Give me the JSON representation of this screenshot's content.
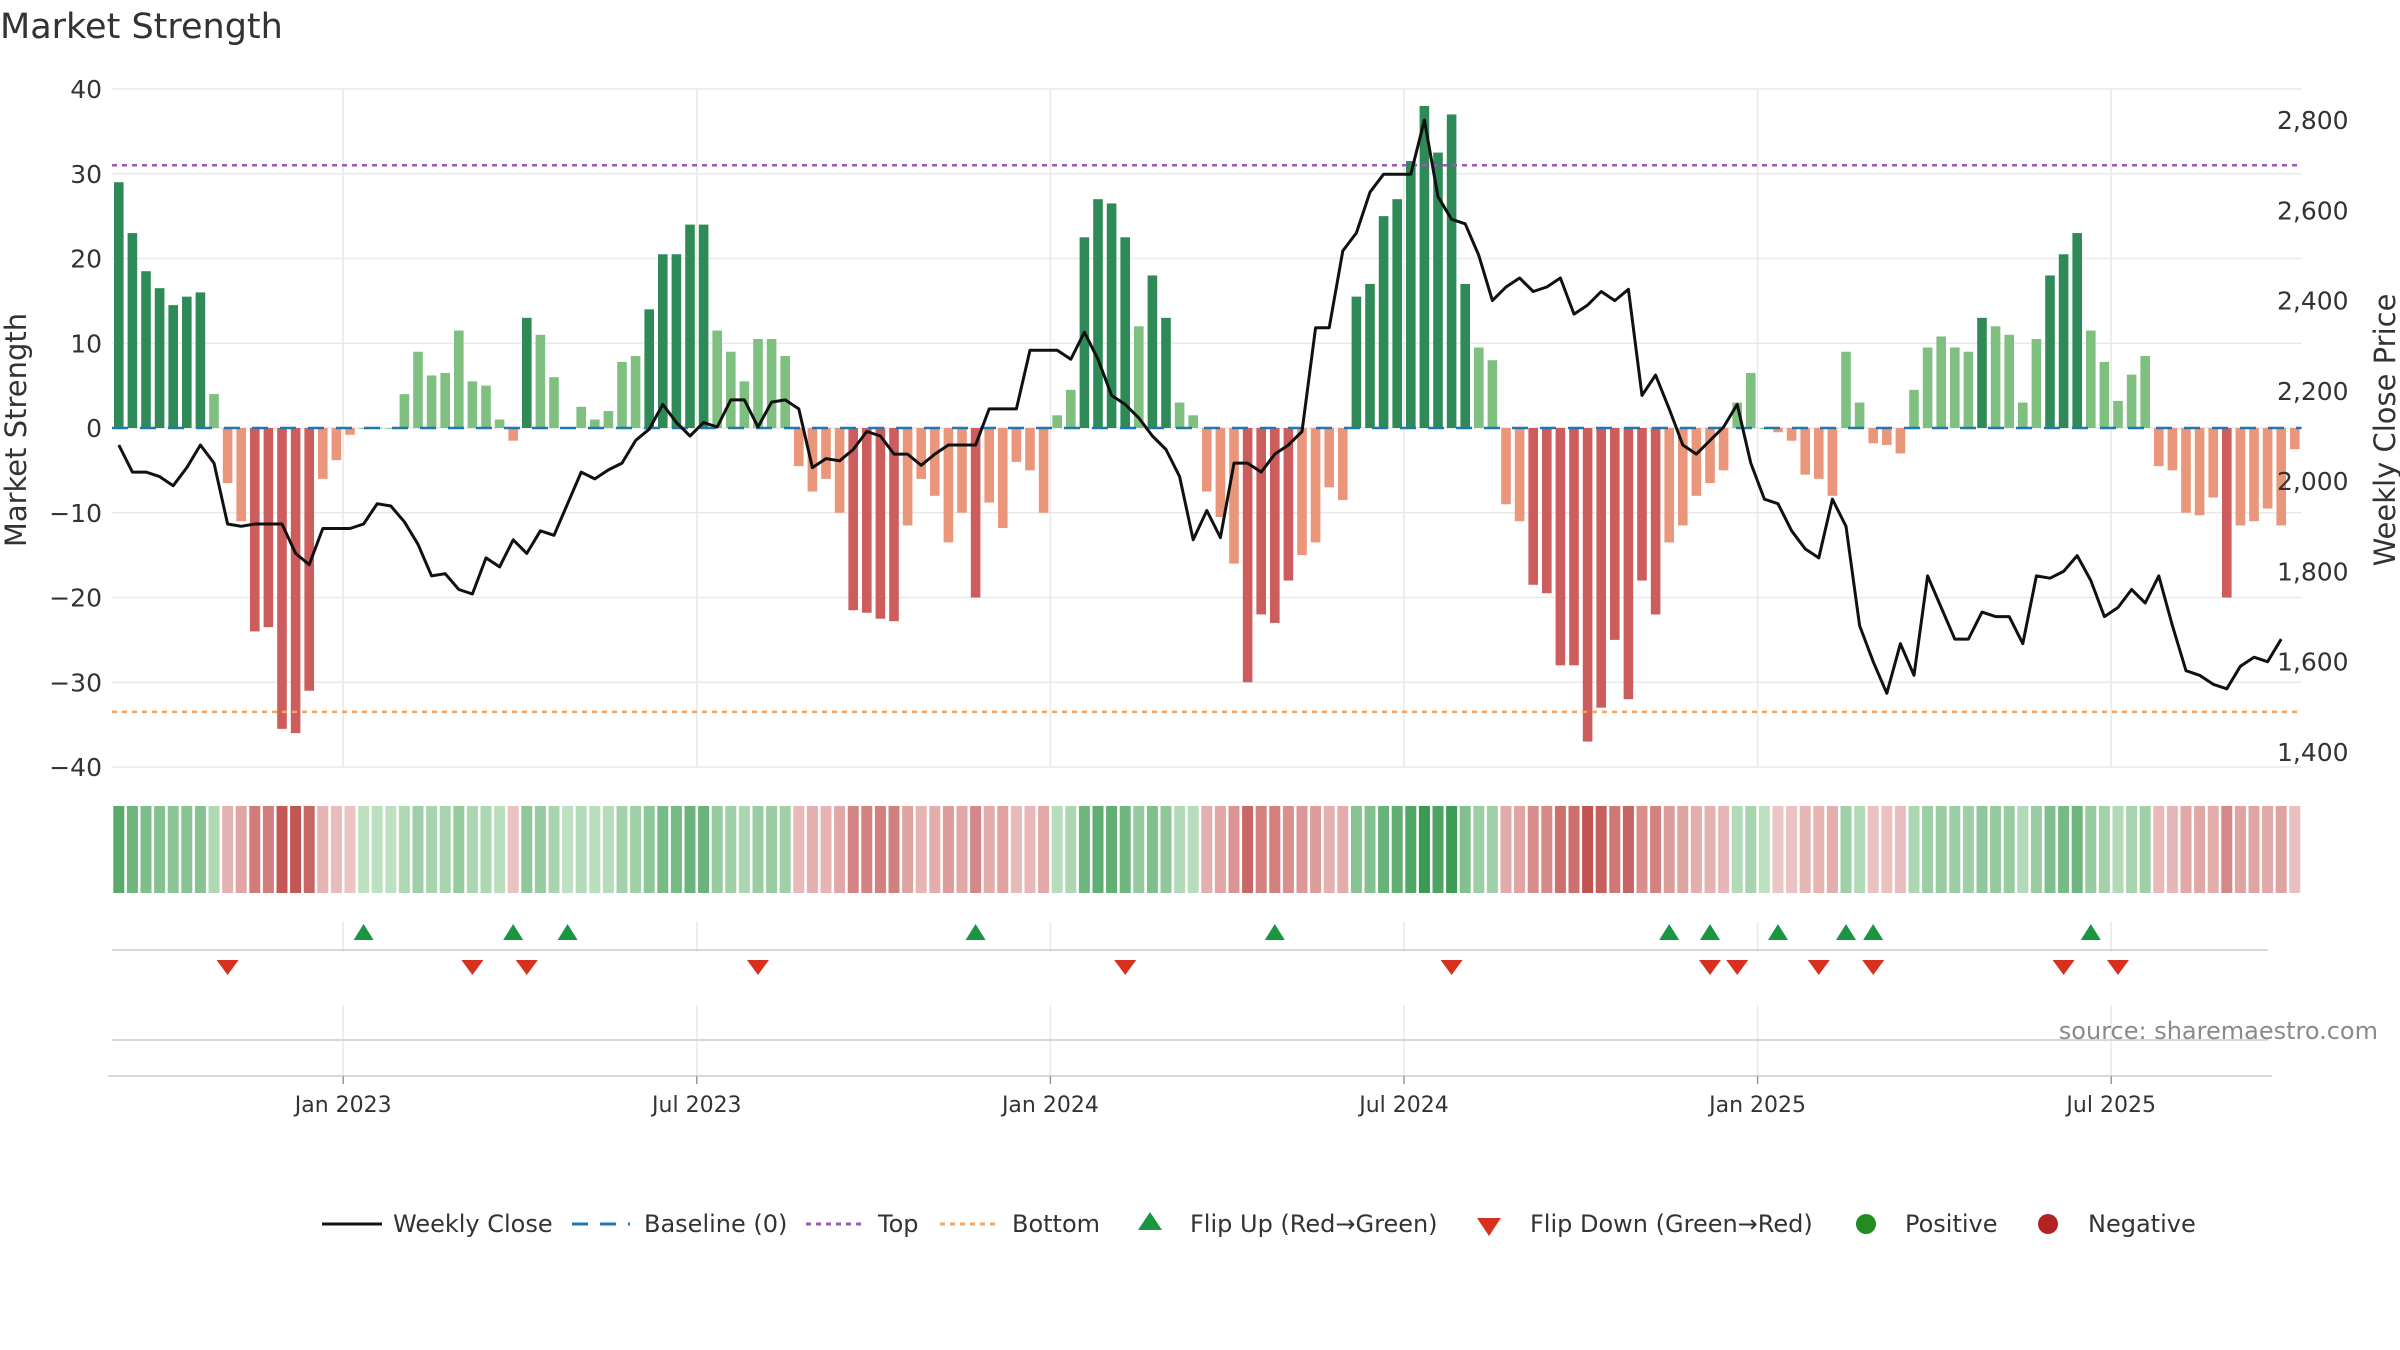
{
  "chart_data": {
    "type": "bar",
    "title": "Market Strength",
    "ylabel": "Market Strength",
    "y2label": "Weekly Close Price",
    "ylim": [
      -40,
      40
    ],
    "y2lim": [
      1350,
      2850
    ],
    "yticks": [
      "40",
      "30",
      "20",
      "10",
      "0",
      "−10",
      "−20",
      "−30",
      "−40"
    ],
    "y2ticks": [
      "2,800",
      "2,600",
      "2,400",
      "2,200",
      "2,000",
      "1,800",
      "1,600",
      "1,400"
    ],
    "top_level": 31,
    "bottom_level": -33.5,
    "source": "source: sharemaestro.com",
    "x_ticks": [
      "Jan 2023",
      "Jul 2023",
      "Jan 2024",
      "Jul 2024",
      "Jan 2025",
      "Jul 2025"
    ],
    "x_tick_weeks": [
      17,
      43,
      69,
      95,
      121,
      147
    ],
    "bars": [
      29,
      23,
      18.5,
      16.5,
      14.5,
      15.5,
      16,
      4,
      -6.5,
      -11,
      -24,
      -23.5,
      -35.5,
      -36,
      -31,
      -6,
      -3.8,
      -0.8,
      0,
      0,
      0,
      4,
      9,
      6.2,
      6.5,
      11.5,
      5.5,
      5,
      1,
      -1.5,
      13,
      11,
      6,
      0,
      2.5,
      1,
      2,
      7.8,
      8.5,
      14,
      20.5,
      20.5,
      24,
      24,
      11.5,
      9,
      5.5,
      10.5,
      10.5,
      8.5,
      -4.5,
      -7.5,
      -6,
      -10,
      -21.5,
      -21.8,
      -22.5,
      -22.8,
      -11.5,
      -6,
      -8,
      -13.5,
      -10,
      -20,
      -8.8,
      -11.8,
      -4,
      -5,
      -10,
      1.5,
      4.5,
      22.5,
      27,
      26.5,
      22.5,
      12,
      18,
      13,
      3,
      1.5,
      -7.5,
      -10.5,
      -16,
      -30,
      -22,
      -23,
      -18,
      -15,
      -13.5,
      -7,
      -8.5,
      15.5,
      17,
      25,
      27,
      31.5,
      38,
      32.5,
      37,
      17,
      9.5,
      8,
      -9,
      -11,
      -18.5,
      -19.5,
      -28,
      -28,
      -37,
      -33,
      -25,
      -32,
      -18,
      -22,
      -13.5,
      -11.5,
      -8,
      -6.5,
      -5,
      3,
      6.5,
      0,
      -0.5,
      -1.5,
      -5.5,
      -6,
      -8,
      9,
      3,
      -1.8,
      -2,
      -3,
      4.5,
      9.5,
      10.8,
      9.5,
      9,
      13,
      12,
      11,
      3,
      10.5,
      18,
      20.5,
      23,
      11.5,
      7.8,
      3.2,
      6.3,
      8.5,
      -4.5,
      -5,
      -10,
      -10.3,
      -8.2,
      -20,
      -11.5,
      -11,
      -9.5,
      -11.5,
      -2.5
    ],
    "close": [
      2080,
      2020,
      2020,
      2010,
      1990,
      2030,
      2080,
      2040,
      1905,
      1900,
      1905,
      1905,
      1905,
      1840,
      1815,
      1895,
      1895,
      1895,
      1905,
      1950,
      1945,
      1910,
      1860,
      1790,
      1795,
      1760,
      1750,
      1830,
      1810,
      1870,
      1840,
      1890,
      1880,
      1950,
      2020,
      2005,
      2025,
      2040,
      2090,
      2115,
      2170,
      2130,
      2100,
      2130,
      2120,
      2180,
      2180,
      2120,
      2175,
      2180,
      2160,
      2030,
      2050,
      2045,
      2070,
      2110,
      2100,
      2060,
      2060,
      2035,
      2060,
      2080,
      2080,
      2080,
      2160,
      2160,
      2160,
      2290,
      2290,
      2290,
      2270,
      2330,
      2270,
      2190,
      2170,
      2140,
      2100,
      2070,
      2010,
      1870,
      1935,
      1875,
      2040,
      2040,
      2020,
      2060,
      2080,
      2110,
      2340,
      2340,
      2510,
      2550,
      2640,
      2680,
      2680,
      2680,
      2800,
      2630,
      2580,
      2570,
      2500,
      2400,
      2430,
      2450,
      2420,
      2430,
      2450,
      2370,
      2390,
      2420,
      2400,
      2425,
      2190,
      2235,
      2160,
      2080,
      2060,
      2090,
      2120,
      2170,
      2040,
      1960,
      1950,
      1890,
      1850,
      1830,
      1960,
      1900,
      1680,
      1600,
      1530,
      1640,
      1570,
      1790,
      1720,
      1650,
      1650,
      1710,
      1700,
      1700,
      1640,
      1790,
      1785,
      1800,
      1835,
      1780,
      1700,
      1720,
      1760,
      1730,
      1790,
      1680,
      1580,
      1570,
      1550,
      1540,
      1590,
      1610,
      1600,
      1650
    ],
    "flip_up_weeks": [
      18,
      29,
      33,
      63,
      85,
      114,
      117,
      122,
      127,
      129,
      145
    ],
    "flip_down_weeks": [
      8,
      26,
      30,
      47,
      74,
      98,
      117,
      119,
      125,
      129,
      143,
      147
    ],
    "legend": [
      "Weekly Close",
      "Baseline (0)",
      "Top",
      "Bottom",
      "Flip Up (Red→Green)",
      "Flip Down (Green→Red)",
      "Positive",
      "Negative"
    ],
    "colors": {
      "pos_dark": "#2e8b57",
      "pos_light": "#7fbf7f",
      "neg_dark": "#cd5c5c",
      "neg_light": "#e9967a",
      "close": "#111111",
      "baseline": "#1f77b4",
      "top": "#9b59b6",
      "bottom": "#f4a460",
      "flip_up": "#1a9641",
      "flip_down": "#d7301f",
      "positive": "#228b22",
      "negative": "#b22222",
      "grid": "#e9e9e9"
    }
  }
}
